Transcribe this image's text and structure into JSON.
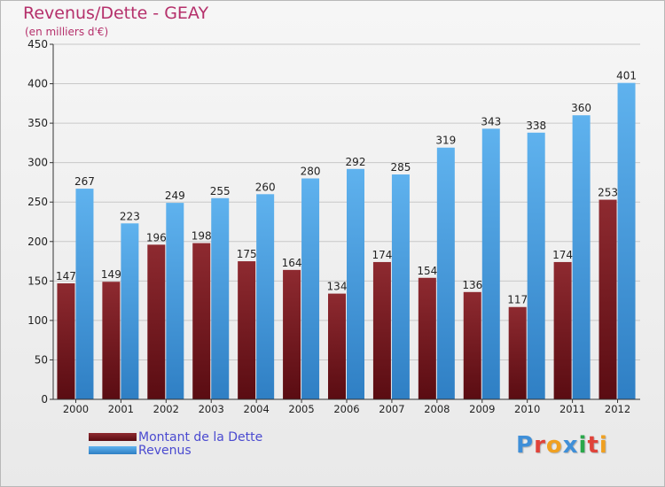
{
  "header": {
    "title": "Revenus/Dette - GEAY",
    "subtitle": "(en milliers d'€)"
  },
  "logo": {
    "text": "Proxiti",
    "letter_colors": [
      "#3f8fd8",
      "#e0433a",
      "#f0a020",
      "#3f8fd8",
      "#2aa84a",
      "#e0433a",
      "#f0a020"
    ]
  },
  "colors": {
    "dette": "#7a1c22",
    "revenus": "#4ea4e4",
    "axis_text": "#222222",
    "grid": "#c8c8c8"
  },
  "chart_data": {
    "type": "bar",
    "title": "Revenus/Dette - GEAY",
    "subtitle": "(en milliers d'€)",
    "categories": [
      "2000",
      "2001",
      "2002",
      "2003",
      "2004",
      "2005",
      "2006",
      "2007",
      "2008",
      "2009",
      "2010",
      "2011",
      "2012"
    ],
    "series": [
      {
        "name": "Montant de la Dette",
        "values": [
          147,
          149,
          196,
          198,
          175,
          164,
          134,
          174,
          154,
          136,
          117,
          174,
          253
        ]
      },
      {
        "name": "Revenus",
        "values": [
          267,
          223,
          249,
          255,
          260,
          280,
          292,
          285,
          319,
          343,
          338,
          360,
          401
        ]
      }
    ],
    "ylim": [
      0,
      450
    ],
    "yticks": [
      "0",
      "50",
      "100",
      "150",
      "200",
      "250",
      "300",
      "350",
      "400",
      "450"
    ],
    "grid": true,
    "legend": "bottom-left"
  }
}
